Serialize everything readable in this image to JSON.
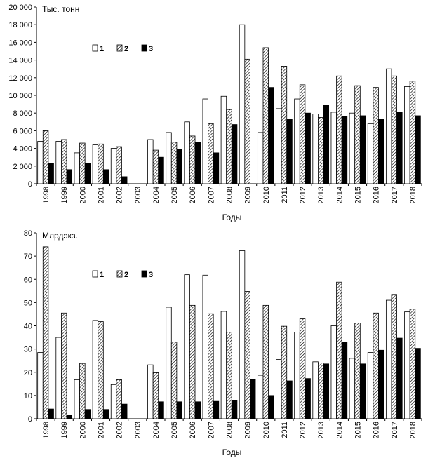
{
  "colors": {
    "series1": "#ffffff",
    "series2": "hatched",
    "series3": "#000000",
    "axis": "#000000"
  },
  "chart_data": [
    {
      "type": "bar",
      "title": "",
      "ylabel": "Тыс. тонн",
      "xlabel": "Годы",
      "ylim": [
        0,
        20000
      ],
      "yticks": [
        "0",
        "2 000",
        "4 000",
        "6 000",
        "8 000",
        "10 000",
        "12 000",
        "14 000",
        "16 000",
        "18 000",
        "20 000"
      ],
      "categories": [
        "1998",
        "1999",
        "2000",
        "2001",
        "2002",
        "2003",
        "2004",
        "2005",
        "2006",
        "2007",
        "2008",
        "2009",
        "2010",
        "2011",
        "2012",
        "2013",
        "2014",
        "2015",
        "2016",
        "2017",
        "2018"
      ],
      "series": [
        {
          "name": "1",
          "values": [
            4800,
            4800,
            3500,
            4400,
            4000,
            null,
            5000,
            5800,
            7000,
            9600,
            9900,
            18000,
            5800,
            8500,
            9600,
            7900,
            8100,
            8000,
            6800,
            13000,
            11000
          ]
        },
        {
          "name": "2",
          "values": [
            6000,
            5000,
            4600,
            4500,
            4200,
            null,
            3800,
            4700,
            5400,
            6800,
            8400,
            14100,
            15400,
            13300,
            11200,
            7500,
            12200,
            11100,
            10900,
            12200,
            11600
          ]
        },
        {
          "name": "3",
          "values": [
            2300,
            1600,
            2300,
            1600,
            800,
            null,
            3000,
            3900,
            4700,
            3500,
            6700,
            null,
            10900,
            7300,
            8000,
            8900,
            7600,
            7700,
            7300,
            8100,
            7700
          ]
        }
      ],
      "legend": {
        "placement": "top-left",
        "labels": [
          "1",
          "2",
          "3"
        ]
      }
    },
    {
      "type": "bar",
      "title": "",
      "ylabel": "Млрдэкз.",
      "xlabel": "Годы",
      "ylim": [
        0,
        80
      ],
      "yticks": [
        "0",
        "10",
        "20",
        "30",
        "40",
        "50",
        "60",
        "70",
        "80"
      ],
      "categories": [
        "1998",
        "1999",
        "2000",
        "2001",
        "2002",
        "2003",
        "2004",
        "2005",
        "2006",
        "2007",
        "2008",
        "2009",
        "2010",
        "2011",
        "2012",
        "2013",
        "2014",
        "2015",
        "2016",
        "2017",
        "2018"
      ],
      "series": [
        {
          "name": "1",
          "values": [
            28.5,
            35,
            16.8,
            42.3,
            14.7,
            null,
            23.2,
            48,
            62,
            61.8,
            46.2,
            72.3,
            18.7,
            25.5,
            37.3,
            24.5,
            40,
            26,
            28.5,
            51,
            46
          ]
        },
        {
          "name": "2",
          "values": [
            74,
            45.5,
            23.8,
            41.8,
            16.8,
            null,
            19.8,
            33,
            48.8,
            45.2,
            37.3,
            54.8,
            48.8,
            39.8,
            43,
            24,
            58.8,
            41.2,
            45.5,
            53.5,
            47.2
          ]
        },
        {
          "name": "3",
          "values": [
            4.2,
            1.5,
            4,
            4,
            6.3,
            null,
            7.3,
            7.3,
            7.3,
            7.5,
            8,
            17,
            10,
            16.3,
            17.3,
            23.6,
            33,
            23.6,
            29.5,
            34.7,
            30.3
          ]
        }
      ],
      "legend": {
        "placement": "top-left",
        "labels": [
          "1",
          "2",
          "3"
        ]
      }
    }
  ]
}
